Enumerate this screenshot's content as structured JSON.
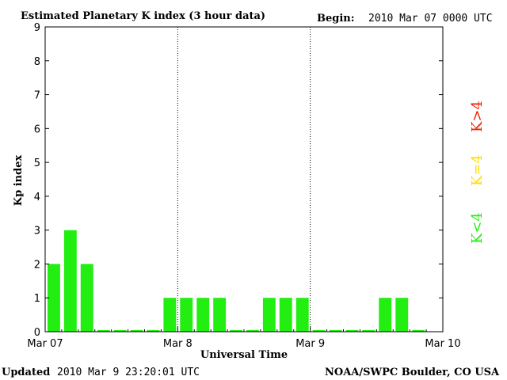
{
  "chart_data": {
    "type": "bar",
    "title": "Estimated Planetary K index (3 hour data)",
    "begin_label": "Begin:",
    "begin_value": "2010 Mar 07 0000 UTC",
    "ylabel": "Kp index",
    "xlabel": "Universal Time",
    "ylim": [
      0,
      9
    ],
    "yticks": [
      0,
      1,
      2,
      3,
      4,
      5,
      6,
      7,
      8,
      9
    ],
    "xticks": [
      "Mar 07",
      "Mar 8",
      "Mar 9",
      "Mar 10"
    ],
    "interval_hours": 3,
    "values": [
      2,
      3,
      2,
      0.05,
      0.05,
      0.05,
      0.05,
      1,
      1,
      1,
      1,
      0.05,
      0.05,
      1,
      1,
      1,
      0.05,
      0.05,
      0.05,
      0.05,
      1,
      1,
      0.05
    ],
    "bar_color": "#22ee11",
    "day_separators": [
      "Mar 8",
      "Mar 9"
    ],
    "legend": [
      {
        "label": "K<4",
        "color": "#22ee11"
      },
      {
        "label": "K=4",
        "color": "#ffdd00"
      },
      {
        "label": "K>4",
        "color": "#ee2200"
      }
    ]
  },
  "footer": {
    "updated_label": "Updated",
    "updated_value": "2010 Mar  9 23:20:01 UTC",
    "source": "NOAA/SWPC Boulder, CO USA"
  }
}
